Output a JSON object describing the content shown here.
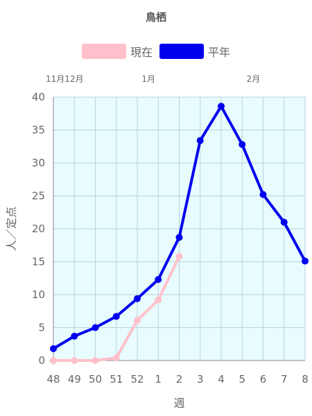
{
  "chart_data": {
    "type": "line",
    "title": "鳥栖",
    "xlabel": "週",
    "ylabel": "人／定点",
    "categories": [
      "48",
      "49",
      "50",
      "51",
      "52",
      "1",
      "2",
      "3",
      "4",
      "5",
      "6",
      "7",
      "8"
    ],
    "month_labels": [
      {
        "label": "11月12月",
        "at": "49"
      },
      {
        "label": "1月",
        "at": "1"
      },
      {
        "label": "2月",
        "at": "6"
      }
    ],
    "ylim": [
      0,
      40
    ],
    "yticks": [
      0,
      5,
      10,
      15,
      20,
      25,
      30,
      35,
      40
    ],
    "grid": true,
    "legend_position": "top",
    "plot_background": "#e8fbfd",
    "grid_color": "#b9d3dc",
    "series": [
      {
        "name": "現在",
        "color": "#ffc0cb",
        "values": [
          0,
          0,
          0,
          0.4,
          6.1,
          9.2,
          15.8,
          null,
          null,
          null,
          null,
          null,
          null
        ]
      },
      {
        "name": "平年",
        "color": "#0000ee",
        "values": [
          1.8,
          3.7,
          5.0,
          6.7,
          9.4,
          12.3,
          18.7,
          33.4,
          38.6,
          32.8,
          25.2,
          21.0,
          15.1
        ]
      }
    ]
  }
}
